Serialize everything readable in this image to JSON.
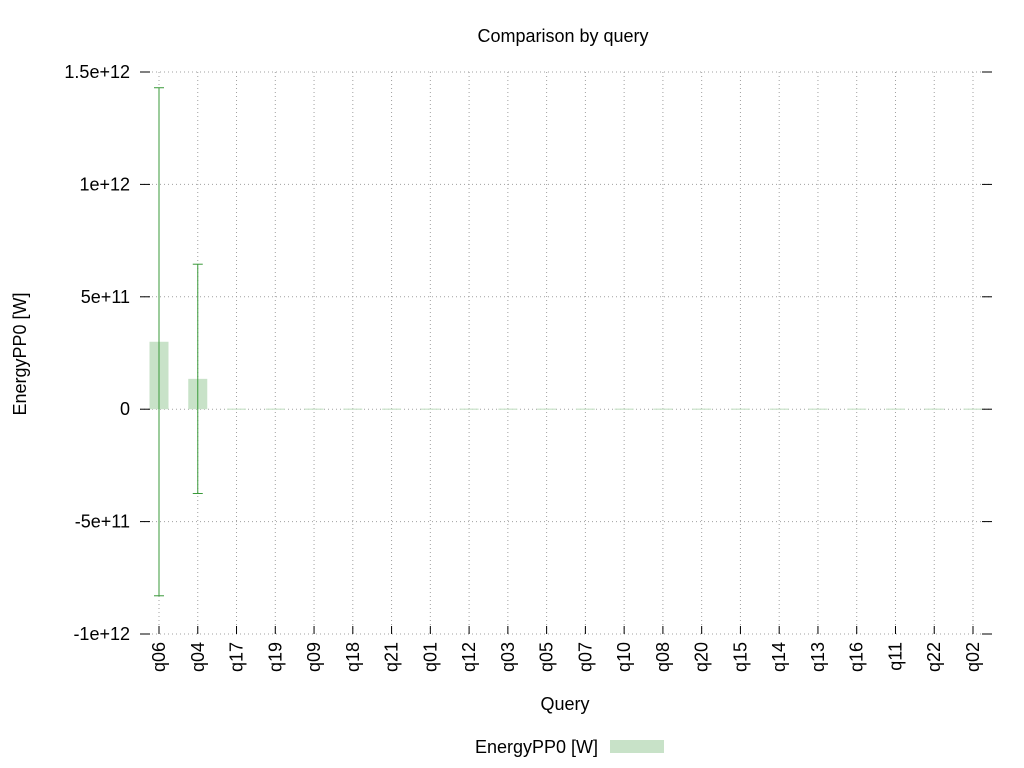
{
  "chart_data": {
    "type": "bar",
    "title": "Comparison by query",
    "xlabel": "Query",
    "ylabel": "EnergyPP0 [W]",
    "ylim": [
      -1000000000000,
      1500000000000
    ],
    "yticks": [
      {
        "value": -1000000000000,
        "label": "-1e+12"
      },
      {
        "value": -500000000000,
        "label": "-5e+11"
      },
      {
        "value": 0,
        "label": "0"
      },
      {
        "value": 500000000000,
        "label": "5e+11"
      },
      {
        "value": 1000000000000,
        "label": "1e+12"
      },
      {
        "value": 1500000000000,
        "label": "1.5e+12"
      }
    ],
    "grid": true,
    "legend_position": "bottom-center",
    "categories": [
      "q06",
      "q04",
      "q17",
      "q19",
      "q09",
      "q18",
      "q21",
      "q01",
      "q12",
      "q03",
      "q05",
      "q07",
      "q10",
      "q08",
      "q20",
      "q15",
      "q14",
      "q13",
      "q16",
      "q11",
      "q22",
      "q02"
    ],
    "series": [
      {
        "name": "EnergyPP0 [W]",
        "color": "#c8e2c8",
        "error_color": "#3a9a3a",
        "values": [
          300000000000,
          135000000000,
          0,
          0,
          0,
          0,
          0,
          0,
          0,
          0,
          0,
          0,
          0,
          0,
          0,
          0,
          0,
          0,
          0,
          0,
          0,
          0
        ],
        "error_low": [
          -830000000000,
          -375000000000,
          0,
          0,
          0,
          0,
          0,
          0,
          0,
          0,
          0,
          0,
          0,
          0,
          0,
          0,
          0,
          0,
          0,
          0,
          0,
          0
        ],
        "error_high": [
          1430000000000,
          645000000000,
          0,
          0,
          0,
          0,
          0,
          0,
          0,
          0,
          0,
          0,
          0,
          0,
          0,
          0,
          0,
          0,
          0,
          0,
          0,
          0
        ]
      }
    ]
  }
}
